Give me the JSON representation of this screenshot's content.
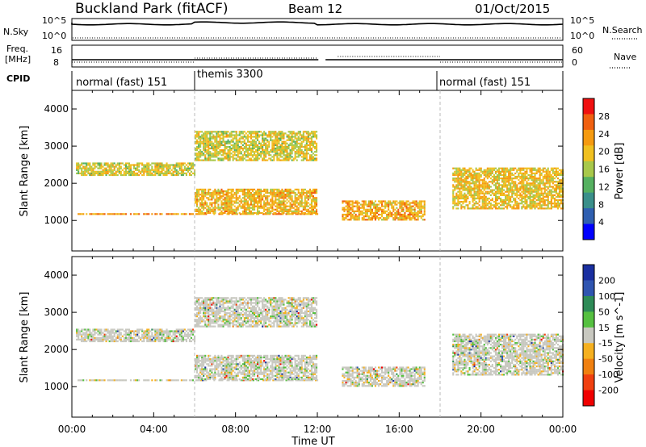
{
  "header": {
    "station": "Buckland Park (fitACF)",
    "beam": "Beam 12",
    "date": "01/Oct/2015"
  },
  "side_labels": {
    "nsky": "N.Sky",
    "nsky_ticks": [
      "10^5",
      "10^0"
    ],
    "nsearch": "N.Search",
    "nsearch_ticks": [
      "10^5",
      "10^0"
    ],
    "freq_line1": "Freq.",
    "freq_line2": "[MHz]",
    "freq_ticks": [
      "16",
      "8"
    ],
    "nave": "Nave",
    "nave_ticks": [
      "60",
      "0"
    ],
    "cpid": "CPID"
  },
  "cpid_segments": [
    {
      "label": "normal (fast) 151",
      "start": 0
    },
    {
      "label": "themis 3300",
      "start": 6
    },
    {
      "label": "normal (fast) 151",
      "start": 18
    }
  ],
  "chart_data": [
    {
      "type": "heatmap",
      "title": "Power",
      "xlabel": "",
      "ylabel": "Slant Range [km]",
      "colorbar_label": "Power [dB]",
      "colorbar_ticks": [
        "4",
        "8",
        "12",
        "16",
        "20",
        "24",
        "28"
      ],
      "colorbar_range": [
        0,
        30
      ],
      "x_ticks": [
        "00:00",
        "04:00",
        "08:00",
        "12:00",
        "16:00",
        "20:00",
        "00:00"
      ],
      "x_range_hours": [
        0,
        24
      ],
      "y_ticks": [
        "1000",
        "2000",
        "3000",
        "4000"
      ],
      "y_range": [
        180,
        4500
      ],
      "palette": [
        "#0000ff",
        "#2f5fb0",
        "#3a8f8a",
        "#55b060",
        "#a8c84a",
        "#f0c020",
        "#f59a10",
        "#f06010",
        "#f01010"
      ],
      "bands": [
        {
          "t0": 0.2,
          "t1": 12.0,
          "r0": 1150,
          "r1": 1180,
          "power": 27
        },
        {
          "t0": 6.0,
          "t1": 12.0,
          "r0": 1180,
          "r1": 1850,
          "power": 25
        },
        {
          "t0": 0.2,
          "t1": 6.0,
          "r0": 2200,
          "r1": 2520,
          "power": 22
        },
        {
          "t0": 6.0,
          "t1": 12.0,
          "r0": 2600,
          "r1": 3400,
          "power": 22
        },
        {
          "t0": 13.2,
          "t1": 17.2,
          "r0": 1000,
          "r1": 1500,
          "power": 26
        },
        {
          "t0": 18.6,
          "t1": 24.0,
          "r0": 1300,
          "r1": 2400,
          "power": 24
        }
      ]
    },
    {
      "type": "heatmap",
      "title": "Velocity",
      "xlabel": "Time UT",
      "ylabel": "Slant Range [km]",
      "colorbar_label": "Velocity [m s^-1]",
      "colorbar_ticks": [
        "200",
        "100",
        "50",
        "15",
        "-15",
        "-50",
        "-100",
        "-200"
      ],
      "x_ticks": [
        "00:00",
        "04:00",
        "08:00",
        "12:00",
        "16:00",
        "20:00",
        "00:00"
      ],
      "x_range_hours": [
        0,
        24
      ],
      "y_ticks": [
        "1000",
        "2000",
        "3000",
        "4000"
      ],
      "y_range": [
        180,
        4500
      ],
      "palette_top_to_bottom": [
        "#1a2fa0",
        "#2f55b0",
        "#2e8b57",
        "#55c040",
        "#c8c8c0",
        "#f5b020",
        "#f08010",
        "#f04010",
        "#f00000"
      ]
    }
  ]
}
